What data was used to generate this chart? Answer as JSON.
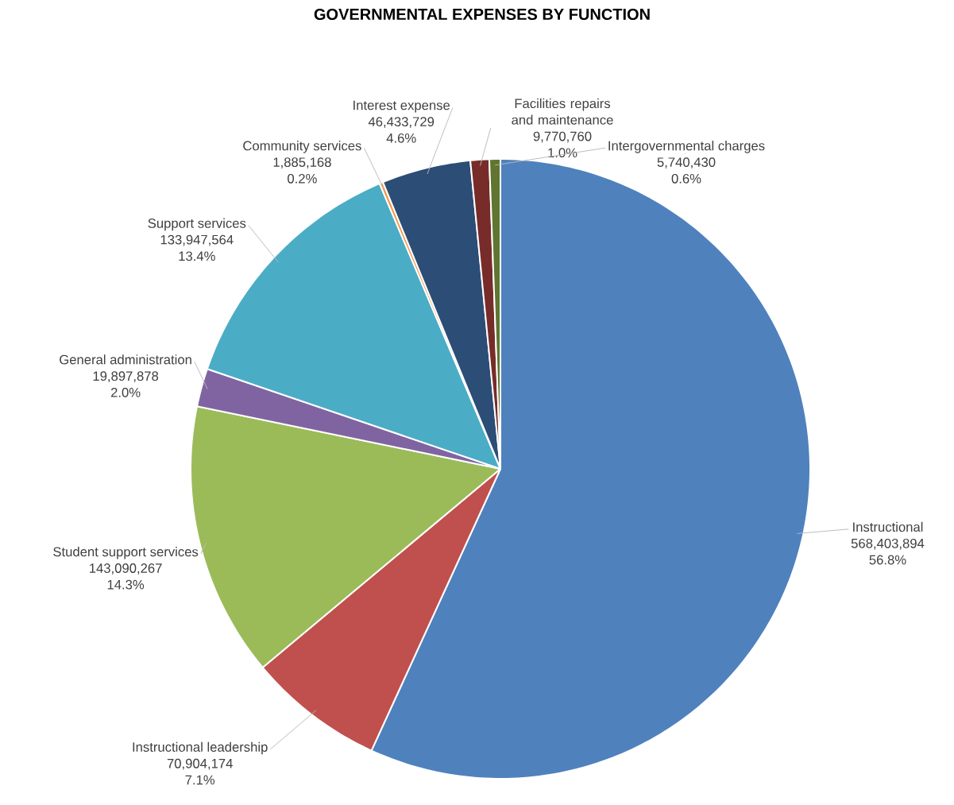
{
  "chart_data": {
    "type": "pie",
    "title": "GOVERNMENTAL EXPENSES BY FUNCTION",
    "categories": [
      "Instructional",
      "Instructional leadership",
      "Student support services",
      "General administration",
      "Support services",
      "Community services",
      "Interest expense",
      "Facilities repairs and maintenance",
      "Intergovernmental charges"
    ],
    "values": [
      568403894,
      70904174,
      143090267,
      19897878,
      133947564,
      1885168,
      46433729,
      9770760,
      5740430
    ],
    "value_labels": [
      "568,403,894",
      "70,904,174",
      "143,090,267",
      "19,897,878",
      "133,947,564",
      "1,885,168",
      "46,433,729",
      "9,770,760",
      "5,740,430"
    ],
    "annotations": [
      "56.8%",
      "7.1%",
      "14.3%",
      "2.0%",
      "13.4%",
      "0.2%",
      "4.6%",
      "1.0%",
      "0.6%"
    ],
    "colors": [
      "#4f81bd",
      "#c0504d",
      "#9bbb59",
      "#8064a2",
      "#4bacc6",
      "#f79646",
      "#2c4d75",
      "#772c2a",
      "#5f7530"
    ],
    "legend": false
  }
}
